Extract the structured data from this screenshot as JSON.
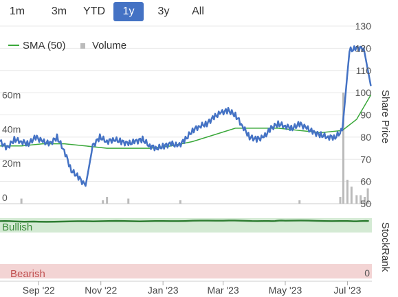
{
  "range_selector": {
    "buttons": [
      "1m",
      "3m",
      "YTD",
      "1y",
      "3y",
      "All"
    ],
    "selected": "1y",
    "active_color": "#4472c4"
  },
  "colors": {
    "price_line": "#4472c4",
    "sma_line": "#3aa83a",
    "volume_bar": "#bbbbbb",
    "stockrank_line": "#2e7d32",
    "bullish_band": "#d4ead4",
    "bearish_band": "#f3d4d4",
    "grid": "#e8e8e8"
  },
  "chart_data": [
    {
      "type": "line",
      "title": "",
      "xlabel": "",
      "ylabel": "Share Price",
      "ylim": [
        50,
        130
      ],
      "y_ticks": [
        50,
        60,
        70,
        80,
        90,
        100,
        110,
        120,
        130
      ],
      "volume_ticks": [
        "0",
        "20m",
        "40m",
        "60m"
      ],
      "volume_ylim_m": [
        0,
        75
      ],
      "x_tick_labels": [
        "Sep '22",
        "Nov '22",
        "Jan '23",
        "Mar '23",
        "May '23",
        "Jul '23"
      ],
      "x_tick_dates": [
        "2022-09-01",
        "2022-11-01",
        "2023-01-01",
        "2023-03-01",
        "2023-05-01",
        "2023-07-01"
      ],
      "x_range": [
        "2022-07-25",
        "2023-07-25"
      ],
      "legend": {
        "position": "top-left",
        "entries": [
          "SMA (50)",
          "Volume"
        ]
      },
      "grid": true,
      "series": [
        {
          "name": "Share Price",
          "x": [
            "2022-07-25",
            "2022-08-01",
            "2022-08-08",
            "2022-08-15",
            "2022-08-22",
            "2022-08-29",
            "2022-09-05",
            "2022-09-12",
            "2022-09-19",
            "2022-09-26",
            "2022-10-03",
            "2022-10-10",
            "2022-10-17",
            "2022-10-24",
            "2022-10-31",
            "2022-11-07",
            "2022-11-14",
            "2022-11-21",
            "2022-11-28",
            "2022-12-05",
            "2022-12-12",
            "2022-12-19",
            "2022-12-26",
            "2023-01-02",
            "2023-01-09",
            "2023-01-16",
            "2023-01-23",
            "2023-01-30",
            "2023-02-06",
            "2023-02-13",
            "2023-02-20",
            "2023-02-27",
            "2023-03-06",
            "2023-03-13",
            "2023-03-20",
            "2023-03-27",
            "2023-04-03",
            "2023-04-10",
            "2023-04-17",
            "2023-04-24",
            "2023-05-01",
            "2023-05-08",
            "2023-05-15",
            "2023-05-22",
            "2023-05-29",
            "2023-06-05",
            "2023-06-12",
            "2023-06-19",
            "2023-06-26",
            "2023-07-03",
            "2023-07-10",
            "2023-07-17",
            "2023-07-24"
          ],
          "values": [
            78,
            75,
            79,
            78,
            77,
            80,
            78,
            77,
            80,
            74,
            65,
            62,
            58,
            76,
            80,
            78,
            79,
            78,
            77,
            78,
            79,
            76,
            75,
            76,
            77,
            76,
            79,
            83,
            85,
            86,
            89,
            91,
            92,
            90,
            85,
            80,
            79,
            80,
            84,
            86,
            85,
            84,
            86,
            84,
            82,
            81,
            80,
            80,
            83,
            119,
            120,
            120,
            103
          ]
        },
        {
          "name": "SMA (50)",
          "x": [
            "2022-07-25",
            "2022-08-15",
            "2022-09-05",
            "2022-09-26",
            "2022-10-17",
            "2022-11-07",
            "2022-11-28",
            "2022-12-19",
            "2023-01-09",
            "2023-01-30",
            "2023-02-20",
            "2023-03-13",
            "2023-04-03",
            "2023-04-24",
            "2023-05-15",
            "2023-06-05",
            "2023-06-26",
            "2023-07-10",
            "2023-07-24"
          ],
          "values": [
            76,
            76,
            77,
            77,
            76,
            75,
            75,
            75,
            76,
            78,
            81,
            84,
            84,
            84,
            83,
            82,
            83,
            88,
            99
          ]
        },
        {
          "name": "Volume",
          "unit": "m",
          "x": [
            "2022-08-15",
            "2022-11-03",
            "2022-11-07",
            "2022-11-28",
            "2023-01-18",
            "2023-05-15",
            "2023-06-24",
            "2023-06-27",
            "2023-07-01",
            "2023-07-05",
            "2023-07-10",
            "2023-07-14",
            "2023-07-18",
            "2023-07-21"
          ],
          "values": [
            3,
            2,
            4,
            3,
            2,
            2,
            4,
            65,
            14,
            10,
            5,
            5,
            4,
            9
          ]
        }
      ]
    },
    {
      "type": "line",
      "title": "",
      "ylabel": "StockRank",
      "ylim": [
        0,
        100
      ],
      "y_ticks": [
        0
      ],
      "bands": {
        "bullish": "Bullish",
        "bearish": "Bearish"
      },
      "series": [
        {
          "name": "StockRank",
          "x": [
            "2022-07-25",
            "2022-09-01",
            "2022-11-01",
            "2023-01-01",
            "2023-03-01",
            "2023-04-15",
            "2023-05-01",
            "2023-07-01",
            "2023-07-25"
          ],
          "values": [
            95,
            94,
            95,
            95,
            96,
            95,
            96,
            95,
            95
          ]
        }
      ]
    }
  ]
}
